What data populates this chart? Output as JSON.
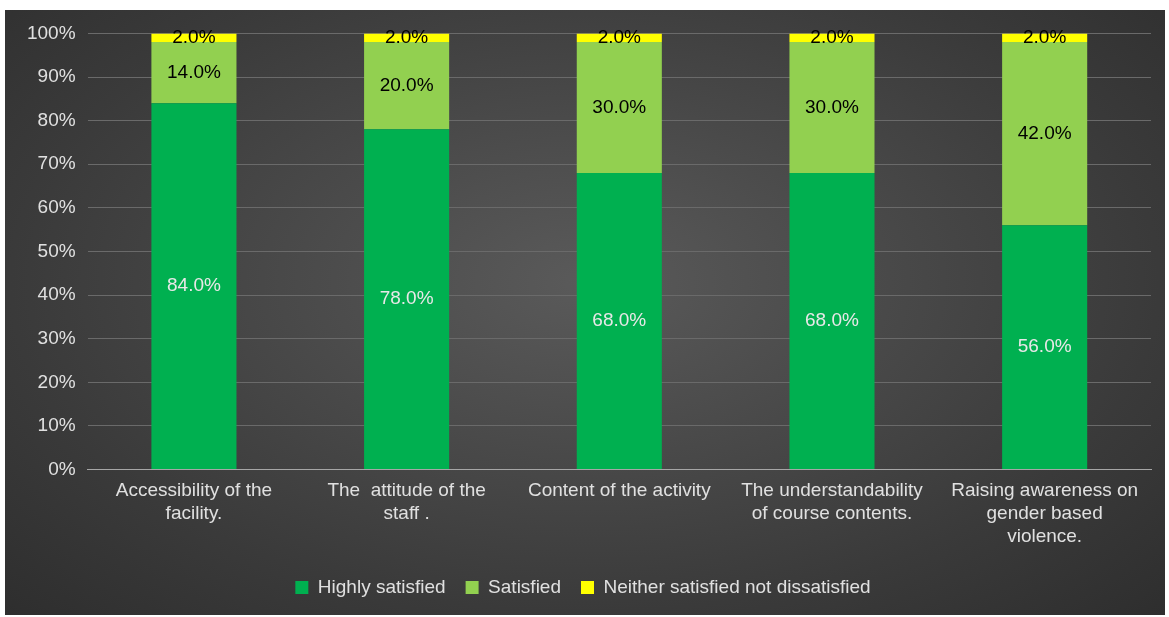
{
  "chart_data": {
    "type": "bar",
    "stacked": true,
    "categories": [
      "Accessibility of the facility.",
      "The  attitude of the staff .",
      "Content of the activity",
      "The understandability of course contents.",
      "Raising awareness on gender based violence."
    ],
    "series": [
      {
        "name": "Highly satisfied",
        "color": "#00b050",
        "values": [
          84,
          78,
          68,
          68,
          56
        ],
        "value_labels": [
          "84.0%",
          "78.0%",
          "68.0%",
          "68.0%",
          "56.0%"
        ]
      },
      {
        "name": "Satisfied",
        "color": "#92d050",
        "values": [
          14,
          20,
          30,
          30,
          42
        ],
        "value_labels": [
          "14.0%",
          "20.0%",
          "30.0%",
          "30.0%",
          "42.0%"
        ]
      },
      {
        "name": "Neither satisfied not dissatisfied",
        "color": "#ffff00",
        "values": [
          2,
          2,
          2,
          2,
          2
        ],
        "value_labels": [
          "2.0%",
          "2.0%",
          "2.0%",
          "2.0%",
          "2.0%"
        ]
      }
    ],
    "ylim": [
      0,
      100
    ],
    "yticks": [
      {
        "value": 0,
        "label": "0%"
      },
      {
        "value": 10,
        "label": "10%"
      },
      {
        "value": 20,
        "label": "20%"
      },
      {
        "value": 30,
        "label": "30%"
      },
      {
        "value": 40,
        "label": "40%"
      },
      {
        "value": 50,
        "label": "50%"
      },
      {
        "value": 60,
        "label": "60%"
      },
      {
        "value": 70,
        "label": "70%"
      },
      {
        "value": 80,
        "label": "80%"
      },
      {
        "value": 90,
        "label": "90%"
      },
      {
        "value": 100,
        "label": "100%"
      }
    ],
    "grid": "y",
    "legend": "bottom"
  }
}
